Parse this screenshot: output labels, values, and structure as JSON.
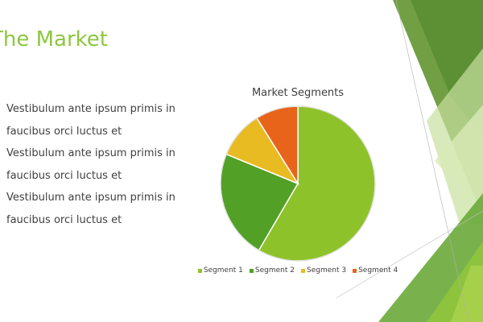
{
  "slide": {
    "title": "The Market",
    "bullets": [
      "Vestibulum ante ipsum primis in faucibus orci luctus et",
      "Vestibulum ante ipsum primis in faucibus orci luctus et",
      "Vestibulum ante ipsum primis in faucibus orci luctus et"
    ]
  },
  "colors": {
    "title": "#8dc63f",
    "segment1": "#8ec22a",
    "segment2": "#52a025",
    "segment3": "#e8bb22",
    "segment4": "#e8641a"
  },
  "chart_data": {
    "type": "pie",
    "title": "Market Segments",
    "legend_position": "bottom",
    "series": [
      {
        "name": "Segment 1",
        "value": 59
      },
      {
        "name": "Segment 2",
        "value": 23
      },
      {
        "name": "Segment 3",
        "value": 10
      },
      {
        "name": "Segment 4",
        "value": 9
      }
    ]
  }
}
